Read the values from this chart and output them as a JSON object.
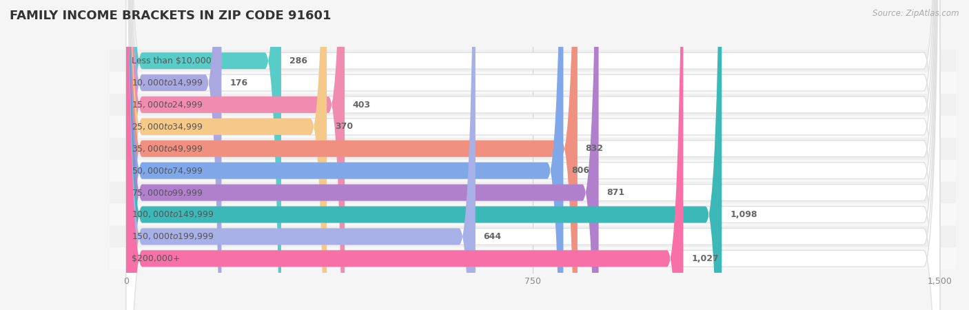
{
  "title": "FAMILY INCOME BRACKETS IN ZIP CODE 91601",
  "source": "Source: ZipAtlas.com",
  "categories": [
    "Less than $10,000",
    "$10,000 to $14,999",
    "$15,000 to $24,999",
    "$25,000 to $34,999",
    "$35,000 to $49,999",
    "$50,000 to $74,999",
    "$75,000 to $99,999",
    "$100,000 to $149,999",
    "$150,000 to $199,999",
    "$200,000+"
  ],
  "values": [
    286,
    176,
    403,
    370,
    832,
    806,
    871,
    1098,
    644,
    1027
  ],
  "bar_colors": [
    "#59ccc8",
    "#a9a8e0",
    "#f08caf",
    "#f5c98a",
    "#f09080",
    "#80a8e8",
    "#b080cc",
    "#3cb8b8",
    "#a8b0e8",
    "#f870a8"
  ],
  "row_bg_colors": [
    "#f0f0f0",
    "#f8f8f8"
  ],
  "bar_bg_color": "#ffffff",
  "xlim": [
    0,
    1500
  ],
  "xticks": [
    0,
    750,
    1500
  ],
  "chart_bg": "#f5f5f5",
  "title_fontsize": 13,
  "label_fontsize": 9,
  "value_fontsize": 9
}
